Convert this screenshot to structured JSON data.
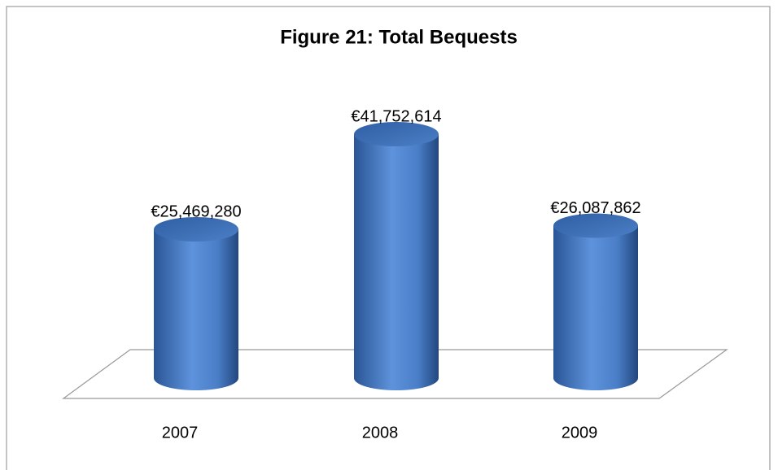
{
  "chart_data": {
    "type": "bar",
    "title": "Figure 21: Total Bequests",
    "categories": [
      "2007",
      "2008",
      "2009"
    ],
    "values": [
      25469280,
      41752614,
      26087862
    ],
    "value_labels": [
      "€25,469,280",
      "€41,752,614",
      "€26,087,862"
    ],
    "color": "#4a7fc8"
  }
}
